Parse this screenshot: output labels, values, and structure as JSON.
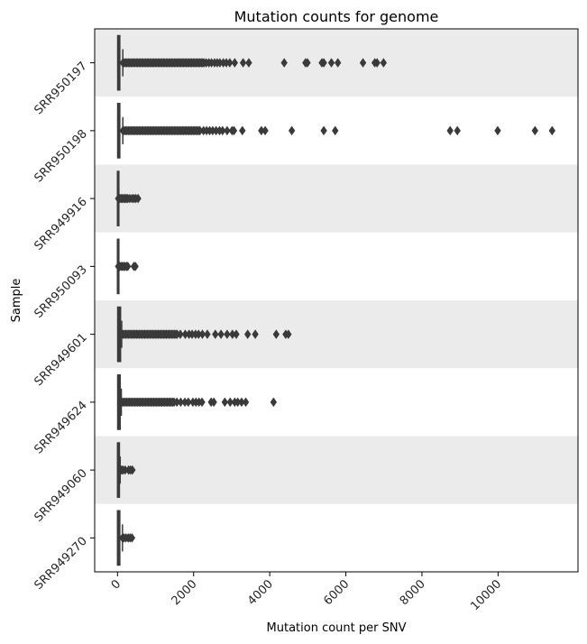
{
  "chart_data": {
    "type": "boxplot-horizontal",
    "title": "Mutation counts for genome",
    "xlabel": "Mutation count per SNV",
    "ylabel": "Sample",
    "xlim": [
      -600,
      12100
    ],
    "xticks": [
      0,
      2000,
      4000,
      6000,
      8000,
      10000
    ],
    "xtick_labels": [
      "0",
      "2000",
      "4000",
      "6000",
      "8000",
      "10000"
    ],
    "band_colors": [
      "#ebebeb",
      "#ffffff"
    ],
    "box_color": "#3a3a3a",
    "series": [
      {
        "category": "SRR950197",
        "q1": 5,
        "median": 30,
        "q3": 60,
        "whisker_low": 0,
        "whisker_high": 140,
        "dense_outliers": [
          140,
          2280
        ],
        "outliers": [
          2330,
          2400,
          2470,
          2550,
          2620,
          2690,
          2780,
          2860,
          2950,
          3080,
          3300,
          3450,
          4380,
          4940,
          4990,
          5370,
          5420,
          5620,
          5790,
          6450,
          6760,
          6820,
          6990
        ]
      },
      {
        "category": "SRR950198",
        "q1": 5,
        "median": 30,
        "q3": 60,
        "whisker_low": 0,
        "whisker_high": 140,
        "dense_outliers": [
          140,
          2200
        ],
        "outliers": [
          2260,
          2340,
          2420,
          2500,
          2590,
          2680,
          2760,
          2880,
          3010,
          3060,
          3280,
          3780,
          3880,
          4580,
          5420,
          5720,
          8740,
          8930,
          9990,
          10970,
          11420
        ]
      },
      {
        "category": "SRR949916",
        "q1": 0,
        "median": 0,
        "q3": 8,
        "whisker_low": 0,
        "whisker_high": 20,
        "dense_outliers": [
          20,
          280
        ],
        "outliers": [
          320,
          380,
          430,
          480,
          540
        ]
      },
      {
        "category": "SRR950093",
        "q1": 0,
        "median": 0,
        "q3": 8,
        "whisker_low": 0,
        "whisker_high": 20,
        "dense_outliers": [
          20,
          200
        ],
        "outliers": [
          240,
          270,
          430,
          470
        ]
      },
      {
        "category": "SRR949601",
        "q1": 5,
        "median": 20,
        "q3": 80,
        "whisker_low": 0,
        "whisker_high": 110,
        "dense_outliers": [
          110,
          1580
        ],
        "outliers": [
          1650,
          1780,
          1880,
          1960,
          2050,
          2130,
          2230,
          2360,
          2570,
          2720,
          2880,
          3020,
          3120,
          3420,
          3620,
          4170,
          4420,
          4490
        ]
      },
      {
        "category": "SRR949624",
        "q1": 5,
        "median": 20,
        "q3": 70,
        "whisker_low": 0,
        "whisker_high": 100,
        "dense_outliers": [
          100,
          1500
        ],
        "outliers": [
          1560,
          1660,
          1770,
          1860,
          1980,
          2060,
          2140,
          2220,
          2460,
          2530,
          2820,
          2960,
          3080,
          3160,
          3260,
          3370,
          4100
        ]
      },
      {
        "category": "SRR949060",
        "q1": 0,
        "median": 20,
        "q3": 50,
        "whisker_low": 0,
        "whisker_high": 70,
        "dense_outliers": [
          70,
          170
        ],
        "outliers": [
          200,
          290,
          340,
          390
        ]
      },
      {
        "category": "SRR949270",
        "q1": 0,
        "median": 20,
        "q3": 60,
        "whisker_low": 0,
        "whisker_high": 130,
        "dense_outliers": [
          130,
          190
        ],
        "outliers": [
          220,
          280,
          330,
          380
        ]
      }
    ]
  }
}
